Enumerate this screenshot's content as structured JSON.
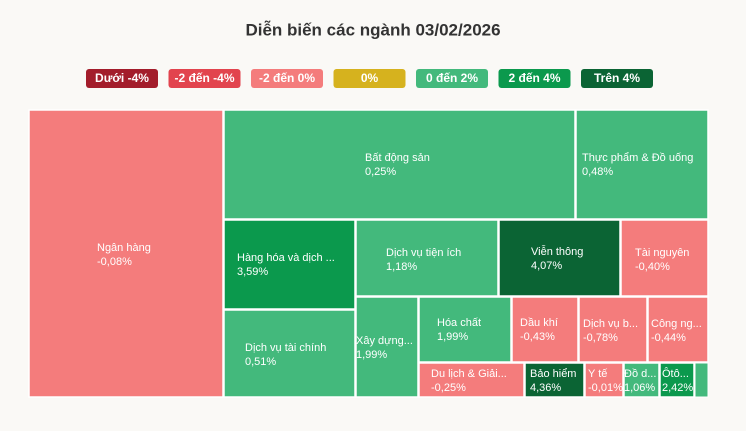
{
  "chart_data": {
    "type": "treemap",
    "title": "Diễn biến các ngành 03/02/2026",
    "legend": [
      {
        "name": "Dưới -4%",
        "color": "#a31d2b"
      },
      {
        "name": "-2 đến -4%",
        "color": "#e2444e"
      },
      {
        "name": "-2 đến 0%",
        "color": "#f47c7c"
      },
      {
        "name": "0%",
        "color": "#d6b21e"
      },
      {
        "name": "0 đến 2%",
        "color": "#43b97c"
      },
      {
        "name": "2 đến 4%",
        "color": "#0b994d"
      },
      {
        "name": "Trên 4%",
        "color": "#0b6434"
      }
    ],
    "categories": [
      "Ngân hàng",
      "Bất động sản",
      "Thực phẩm & Đồ uống",
      "Hàng hóa và dịch ...",
      "Dịch vụ tài chính",
      "Dịch vụ tiện ích",
      "Viễn thông",
      "Tài nguyên",
      "Xây dựng...",
      "Hóa chất",
      "Dầu khí",
      "Dịch vụ b...",
      "Công ng...",
      "Du lịch & Giải...",
      "Bảo hiểm",
      "Y tế",
      "Đồ d...",
      "Ôtô..."
    ],
    "values": [
      -0.08,
      0.25,
      0.48,
      3.59,
      0.51,
      1.18,
      4.07,
      -0.4,
      1.99,
      1.99,
      -0.43,
      -0.78,
      -0.44,
      -0.25,
      4.36,
      -0.01,
      1.06,
      2.42
    ],
    "value_labels": [
      "-0,08%",
      "0,25%",
      "0,48%",
      "3,59%",
      "0,51%",
      "1,18%",
      "4,07%",
      "-0,40%",
      "1,99%",
      "1,99%",
      "-0,43%",
      "-0,78%",
      "-0,44%",
      "-0,25%",
      "4,36%",
      "-0,01%",
      "1,06%",
      "2,42%"
    ],
    "colors": [
      "#f47c7c",
      "#43b97c",
      "#43b97c",
      "#0b994d",
      "#43b97c",
      "#43b97c",
      "#0b6434",
      "#f47c7c",
      "#43b97c",
      "#43b97c",
      "#f47c7c",
      "#f47c7c",
      "#f47c7c",
      "#f47c7c",
      "#0b6434",
      "#f47c7c",
      "#43b97c",
      "#0b994d"
    ]
  }
}
